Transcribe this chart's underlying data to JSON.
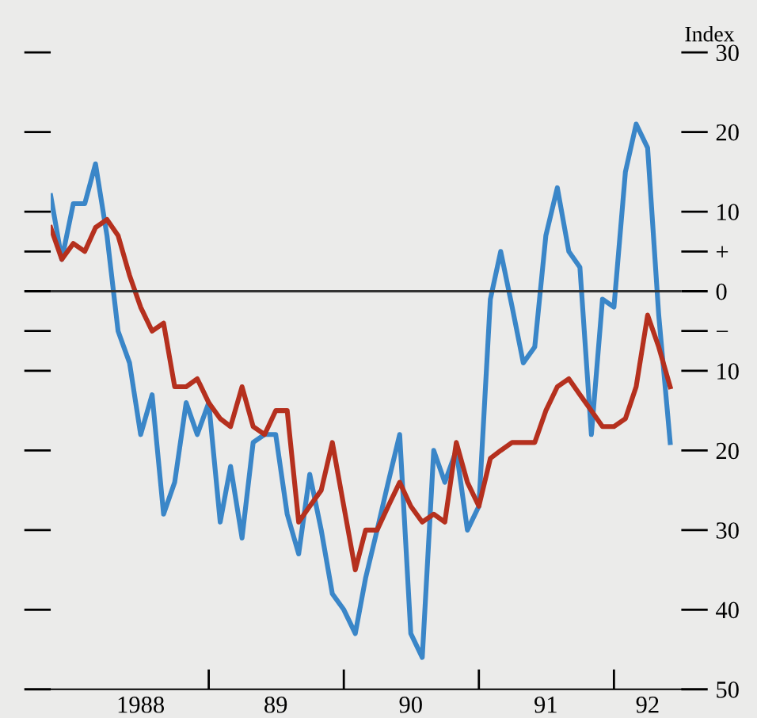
{
  "chart_data": {
    "type": "line",
    "x": [
      "1987-11",
      "1987-12",
      "1988-01",
      "1988-02",
      "1988-03",
      "1988-04",
      "1988-05",
      "1988-06",
      "1988-07",
      "1988-08",
      "1988-09",
      "1988-10",
      "1988-11",
      "1988-12",
      "1989-01",
      "1989-02",
      "1989-03",
      "1989-04",
      "1989-05",
      "1989-06",
      "1989-07",
      "1989-08",
      "1989-09",
      "1989-10",
      "1989-11",
      "1989-12",
      "1990-01",
      "1990-02",
      "1990-03",
      "1990-04",
      "1990-05",
      "1990-06",
      "1990-07",
      "1990-08",
      "1990-09",
      "1990-10",
      "1990-11",
      "1990-12",
      "1991-01",
      "1991-02",
      "1991-03",
      "1991-04",
      "1991-05",
      "1991-06",
      "1991-07",
      "1991-08",
      "1991-09",
      "1991-10",
      "1991-11",
      "1991-12",
      "1992-01",
      "1992-02",
      "1992-03",
      "1992-04",
      "1992-05",
      "1992-06"
    ],
    "series": [
      {
        "color": "#3a86c8",
        "values": [
          12,
          4,
          11,
          11,
          16,
          7,
          -5,
          -9,
          -18,
          -13,
          -28,
          -24,
          -14,
          -18,
          -14,
          -29,
          -22,
          -31,
          -19,
          -18,
          -18,
          -28,
          -33,
          -23,
          -30,
          -38,
          -40,
          -43,
          -36,
          -30,
          -24,
          -18,
          -43,
          -46,
          -20,
          -24,
          -20,
          -30,
          -27,
          -1,
          5,
          -2,
          -9,
          -7,
          7,
          13,
          5,
          3,
          -18,
          -1,
          -2,
          15,
          21,
          18,
          -3,
          -19
        ]
      },
      {
        "color": "#b5301e",
        "values": [
          8,
          4,
          6,
          5,
          8,
          9,
          7,
          2,
          -2,
          -5,
          -4,
          -12,
          -12,
          -11,
          -14,
          -16,
          -17,
          -12,
          -17,
          -18,
          -15,
          -15,
          -29,
          -27,
          -25,
          -19,
          -27,
          -35,
          -30,
          -30,
          -27,
          -24,
          -27,
          -29,
          -28,
          -29,
          -19,
          -24,
          -27,
          -21,
          -20,
          -19,
          -19,
          -19,
          -15,
          -12,
          -11,
          -13,
          -15,
          -17,
          -17,
          -16,
          -12,
          -3,
          -7,
          -12
        ]
      }
    ],
    "ylabel": "Index",
    "xlim": [
      "1987-11",
      "1992-07"
    ],
    "xticks": [
      {
        "value": "1989-01",
        "label": null
      },
      {
        "value": "1990-01",
        "label": null
      },
      {
        "value": "1991-01",
        "label": null
      },
      {
        "value": "1992-01",
        "label": null
      },
      {
        "value": "1988-07",
        "label": "1988"
      },
      {
        "value": "1989-07",
        "label": "89"
      },
      {
        "value": "1990-07",
        "label": "90"
      },
      {
        "value": "1991-07",
        "label": "91"
      },
      {
        "value": "1992-04",
        "label": "92"
      }
    ],
    "ylim": [
      -50,
      30
    ],
    "yticks": [
      30,
      20,
      10,
      {
        "value": 5,
        "label": "+"
      },
      0,
      {
        "value": -5,
        "label": "−"
      },
      {
        "value": -10,
        "label": "10"
      },
      {
        "value": -20,
        "label": "20"
      },
      {
        "value": -30,
        "label": "30"
      },
      {
        "value": -40,
        "label": "40"
      },
      {
        "value": -50,
        "label": "50"
      }
    ],
    "ref_lines": [
      {
        "axis": "y",
        "value": 0,
        "label": null,
        "color": "#333333"
      }
    ],
    "grid": false,
    "legend": false,
    "marker": "none",
    "line_style": "solid"
  }
}
